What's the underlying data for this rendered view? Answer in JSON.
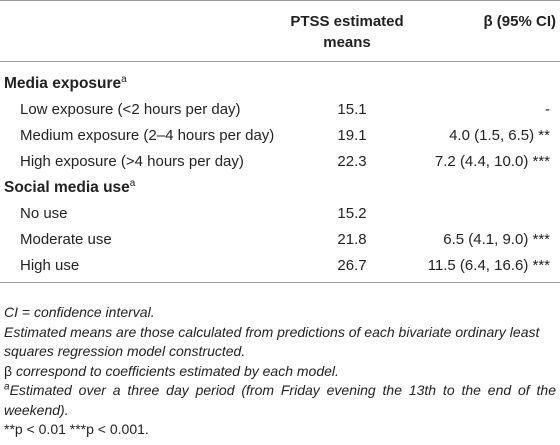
{
  "table": {
    "headers": {
      "col1": "",
      "col2": "PTSS estimated means",
      "col3": "β (95% CI)"
    },
    "sections": [
      {
        "title": "Media exposure",
        "title_sup": "a",
        "rows": [
          {
            "label": "Low exposure (<2 hours per day)",
            "mean": "15.1",
            "beta": "-"
          },
          {
            "label": "Medium exposure (2–4 hours per day)",
            "mean": "19.1",
            "beta": "4.0 (1.5, 6.5) **"
          },
          {
            "label": "High exposure (>4 hours per day)",
            "mean": "22.3",
            "beta": "7.2 (4.4, 10.0) ***"
          }
        ]
      },
      {
        "title": "Social media use",
        "title_sup": "a",
        "rows": [
          {
            "label": "No use",
            "mean": "15.2",
            "beta": ""
          },
          {
            "label": "Moderate use",
            "mean": "21.8",
            "beta": "6.5 (4.1, 9.0) ***"
          },
          {
            "label": "High use",
            "mean": "26.7",
            "beta": "11.5 (6.4, 16.6) ***"
          }
        ]
      }
    ]
  },
  "footnotes": {
    "ci": "CI = confidence interval.",
    "estimated": "Estimated means are those calculated from predictions of each bivariate ordinary least squares regression model constructed.",
    "beta_symbol": "β",
    "beta_text": " correspond to coefficients estimated by each model.",
    "a_sup": "a",
    "a_text": "Estimated over a three day period (from Friday evening the 13th to the end of the weekend).",
    "p_values": "**p < 0.01 ***p < 0.001."
  }
}
